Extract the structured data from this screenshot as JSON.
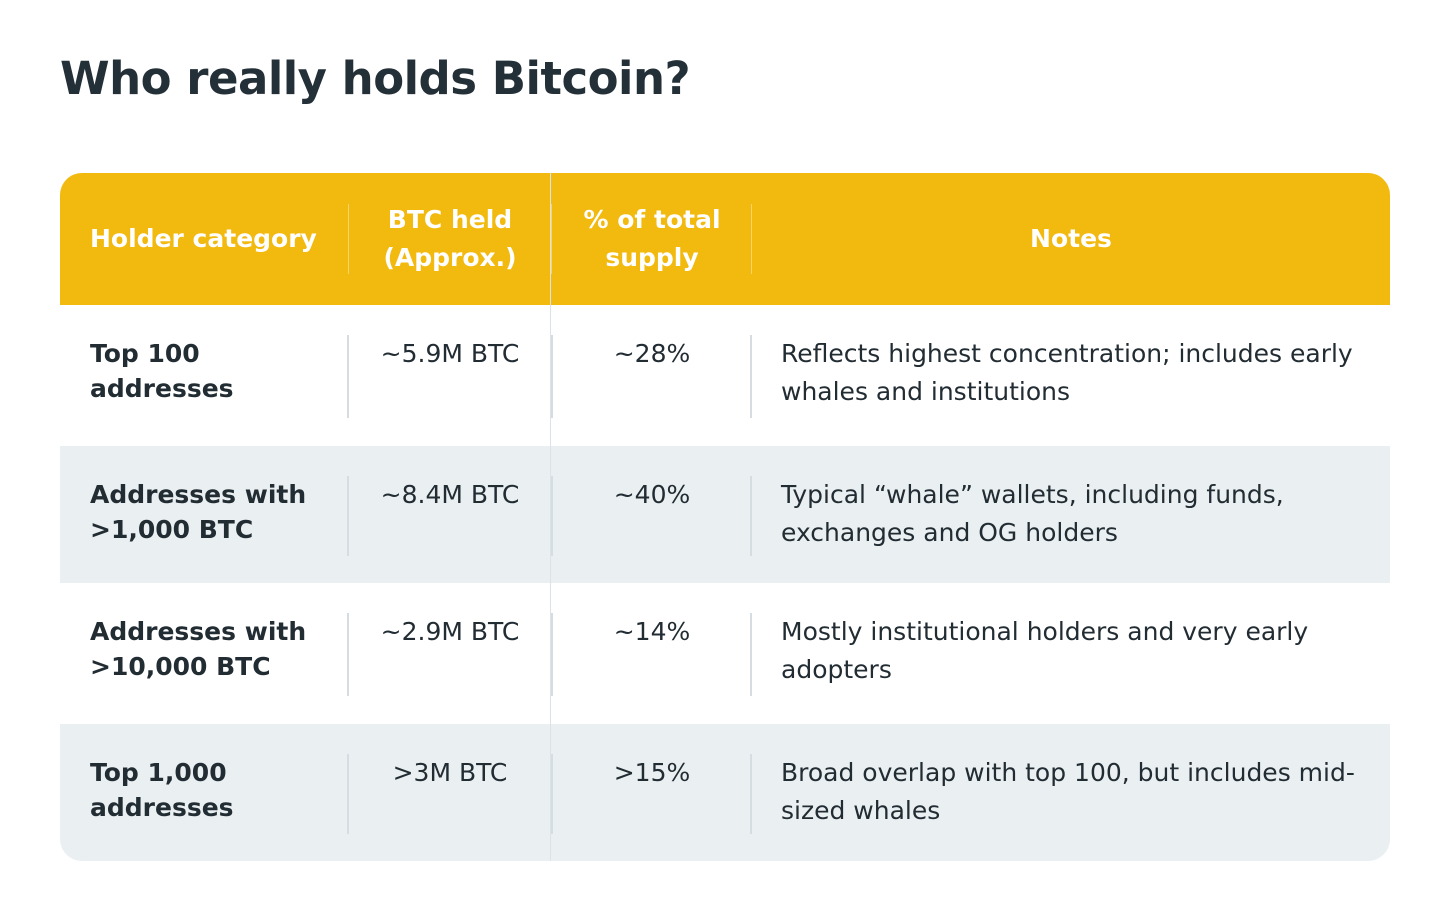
{
  "title": "Who really holds Bitcoin?",
  "table": {
    "headers": [
      "Holder category",
      "BTC held (Approx.)",
      "% of total supply",
      "Notes"
    ],
    "rows": [
      {
        "category": "Top 100 addresses",
        "btc": "~5.9M BTC",
        "percent": "~28%",
        "notes": "Reflects highest concentration; includes early whales and institutions"
      },
      {
        "category": "Addresses with >1,000 BTC",
        "btc": "~8.4M BTC",
        "percent": "~40%",
        "notes": "Typical “whale” wallets, including funds, exchanges and OG holders"
      },
      {
        "category": "Addresses with >10,000 BTC",
        "btc": "~2.9M BTC",
        "percent": "~14%",
        "notes": "Mostly institutional holders and very early adopters"
      },
      {
        "category": "Top 1,000 addresses",
        "btc": ">3M BTC",
        "percent": ">15%",
        "notes": "Broad overlap with top 100, but includes mid-sized whales"
      }
    ]
  },
  "colors": {
    "header_bg": "#f2b90f",
    "alt_row_bg": "#eaeff2",
    "title_text": "#243038"
  }
}
